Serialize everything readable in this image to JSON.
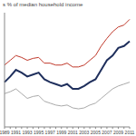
{
  "chart_data": {
    "type": "line",
    "title": "s % of median household income",
    "categories": [
      "1989",
      null,
      "1991",
      null,
      "1993",
      null,
      "1995",
      null,
      "1997",
      null,
      "1999",
      null,
      "2001",
      null,
      "2003",
      null,
      "2005",
      null,
      "2007",
      null,
      "2009",
      null,
      "2011"
    ],
    "series": [
      {
        "color": "#c0392b",
        "values": [
          32.5,
          35,
          37.5,
          36.5,
          35,
          36,
          36.5,
          33.5,
          33.5,
          32.5,
          32.5,
          33.5,
          31.5,
          31.5,
          32.5,
          35,
          37.5,
          42.5,
          46.5,
          50,
          52.5,
          53.5,
          56.5
        ]
      },
      {
        "color": "#1f2f5c",
        "values": [
          23.5,
          26.5,
          30,
          28.5,
          26.5,
          27.5,
          28.5,
          25,
          23.5,
          22.5,
          21.5,
          22.5,
          20,
          20,
          21.5,
          23.5,
          25,
          30,
          35,
          37.5,
          41.5,
          42.5,
          45
        ]
      },
      {
        "color": "#aaaaaa",
        "values": [
          17.5,
          18.5,
          20,
          17.5,
          15,
          16,
          16.5,
          13.5,
          12.5,
          11.5,
          11,
          11.5,
          10,
          9.5,
          10,
          11.5,
          12.5,
          15,
          17.5,
          20,
          21.5,
          22.5,
          23.5
        ]
      }
    ],
    "ylim": [
      0,
      60
    ],
    "tick_labels": "x",
    "grid": false
  }
}
